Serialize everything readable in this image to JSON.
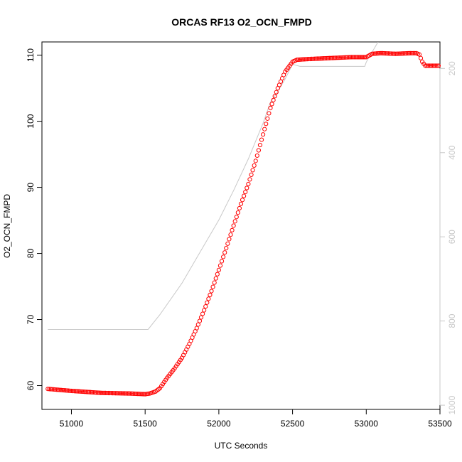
{
  "chart_data": {
    "type": "scatter",
    "title": "ORCAS RF13 O2_OCN_FMPD",
    "xlabel": "UTC Seconds",
    "ylabel": "O2_OCN_FMPD",
    "xlim": [
      50800,
      53500
    ],
    "ylim": [
      56.4,
      112.0
    ],
    "x_ticks": [
      51000,
      51500,
      52000,
      52500,
      53000,
      53500
    ],
    "y_ticks": [
      60,
      70,
      80,
      90,
      100,
      110
    ],
    "y2_ticks": [
      200,
      400,
      600,
      800,
      1000
    ],
    "y2lim": [
      1010,
      137
    ],
    "y2_reversed": true,
    "grid": false,
    "colors": {
      "points": "#ff0000",
      "secondary_line": "#c8c8c8",
      "axes": "#000000",
      "secondary_axis": "#c8c8c8"
    },
    "series": [
      {
        "axis": "left",
        "style": "open-circles",
        "points": [
          [
            50840,
            59.5
          ],
          [
            51000,
            59.2
          ],
          [
            51200,
            58.9
          ],
          [
            51400,
            58.8
          ],
          [
            51500,
            58.7
          ],
          [
            51530,
            58.8
          ],
          [
            51570,
            59.1
          ],
          [
            51600,
            59.6
          ],
          [
            51650,
            61.2
          ],
          [
            51700,
            62.6
          ],
          [
            51750,
            64.2
          ],
          [
            51800,
            66.3
          ],
          [
            51850,
            68.7
          ],
          [
            51900,
            71.4
          ],
          [
            51950,
            74.3
          ],
          [
            52000,
            77.5
          ],
          [
            52050,
            80.8
          ],
          [
            52100,
            84.2
          ],
          [
            52150,
            87.5
          ],
          [
            52200,
            90.5
          ],
          [
            52250,
            94.0
          ],
          [
            52300,
            98.0
          ],
          [
            52350,
            102.0
          ],
          [
            52400,
            105.0
          ],
          [
            52450,
            107.5
          ],
          [
            52500,
            109.0
          ],
          [
            52530,
            109.3
          ],
          [
            52600,
            109.4
          ],
          [
            52700,
            109.5
          ],
          [
            52800,
            109.6
          ],
          [
            52900,
            109.7
          ],
          [
            53000,
            109.7
          ],
          [
            53040,
            110.2
          ],
          [
            53100,
            110.3
          ],
          [
            53200,
            110.2
          ],
          [
            53300,
            110.3
          ],
          [
            53340,
            110.3
          ],
          [
            53360,
            110.1
          ],
          [
            53380,
            109.0
          ],
          [
            53400,
            108.4
          ],
          [
            53450,
            108.4
          ],
          [
            53490,
            108.4
          ]
        ]
      },
      {
        "axis": "right",
        "style": "line",
        "points": [
          [
            50840,
            820
          ],
          [
            51000,
            820
          ],
          [
            51200,
            820
          ],
          [
            51400,
            820
          ],
          [
            51520,
            820
          ],
          [
            51600,
            785
          ],
          [
            51750,
            710
          ],
          [
            51850,
            650
          ],
          [
            52000,
            560
          ],
          [
            52100,
            490
          ],
          [
            52200,
            415
          ],
          [
            52300,
            330
          ],
          [
            52350,
            280
          ],
          [
            52400,
            255
          ],
          [
            52450,
            225
          ],
          [
            52500,
            190
          ],
          [
            52550,
            195
          ],
          [
            52700,
            195
          ],
          [
            52990,
            195
          ],
          [
            53000,
            185
          ],
          [
            53050,
            155
          ],
          [
            53080,
            137
          ]
        ]
      }
    ]
  }
}
